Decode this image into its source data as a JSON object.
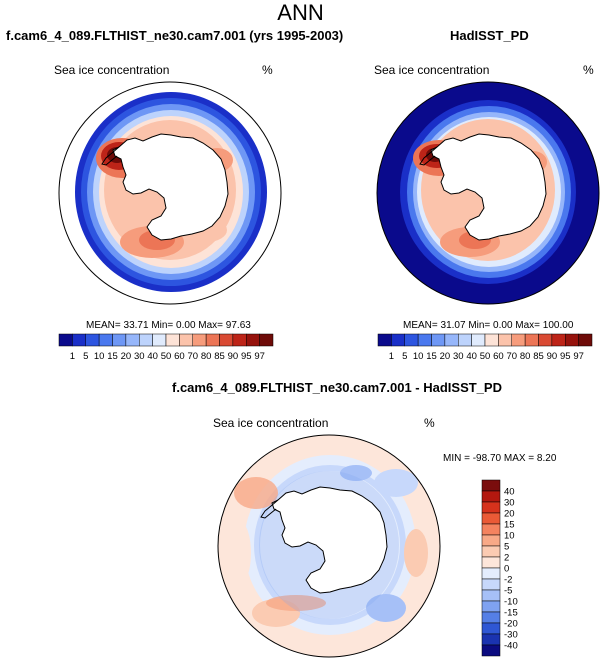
{
  "title": "ANN",
  "panels": [
    {
      "title": "f.cam6_4_089.FLTHIST_ne30.cam7.001 (yrs 1995-2003)",
      "variable": "Sea ice concentration",
      "units": "%",
      "stats": "MEAN= 33.71 Min= 0.00 Max= 97.63"
    },
    {
      "title": "HadISST_PD",
      "variable": "Sea ice concentration",
      "units": "%",
      "stats": "MEAN= 31.07 Min= 0.00 Max= 100.00"
    },
    {
      "title": "f.cam6_4_089.FLTHIST_ne30.cam7.001 - HadISST_PD",
      "variable": "Sea ice concentration",
      "units": "%",
      "stats": "MIN = -98.70 MAX = 8.20"
    }
  ],
  "chart_data": [
    {
      "type": "heatmap",
      "projection": "south-polar-stereographic",
      "title": "f.cam6_4_089.FLTHIST_ne30.cam7.001 (yrs 1995-2003)",
      "variable": "Sea ice concentration",
      "units": "%",
      "mean": 33.71,
      "min": 0.0,
      "max": 97.63,
      "colorbar_levels": [
        "1",
        "5",
        "10",
        "15",
        "20",
        "30",
        "40",
        "50",
        "60",
        "70",
        "80",
        "85",
        "90",
        "95",
        "97"
      ],
      "colorbar_colors": [
        "#0a0a8c",
        "#1a2fc8",
        "#2d55e0",
        "#4a78ee",
        "#6e97f5",
        "#96b6fa",
        "#bdd3fc",
        "#e0ebfd",
        "#fde3d7",
        "#fbc3ab",
        "#f69c7c",
        "#ec7556",
        "#d94a33",
        "#bd2418",
        "#96120c",
        "#6e0b08"
      ],
      "legend_position": "bottom"
    },
    {
      "type": "heatmap",
      "projection": "south-polar-stereographic",
      "title": "HadISST_PD",
      "variable": "Sea ice concentration",
      "units": "%",
      "mean": 31.07,
      "min": 0.0,
      "max": 100.0,
      "colorbar_levels": [
        "1",
        "5",
        "10",
        "15",
        "20",
        "30",
        "40",
        "50",
        "60",
        "70",
        "80",
        "85",
        "90",
        "95",
        "97"
      ],
      "legend_position": "bottom"
    },
    {
      "type": "heatmap",
      "projection": "south-polar-stereographic",
      "title": "f.cam6_4_089.FLTHIST_ne30.cam7.001 - HadISST_PD",
      "variable": "Sea ice concentration",
      "units": "%",
      "min": -98.7,
      "max": 8.2,
      "colorbar_levels": [
        "40",
        "30",
        "20",
        "15",
        "10",
        "5",
        "2",
        "0",
        "-2",
        "-5",
        "-10",
        "-15",
        "-20",
        "-30",
        "-40"
      ],
      "colorbar_colors": [
        "#7a0d0d",
        "#b3180f",
        "#d6321c",
        "#ea5a36",
        "#f4835f",
        "#f8a987",
        "#fbcbb2",
        "#fde6da",
        "#e4edfd",
        "#c7d8fb",
        "#a6c0f7",
        "#7fa2f1",
        "#557fe6",
        "#2f57d4",
        "#1a33b0",
        "#0b0b80"
      ],
      "legend_position": "right"
    }
  ]
}
